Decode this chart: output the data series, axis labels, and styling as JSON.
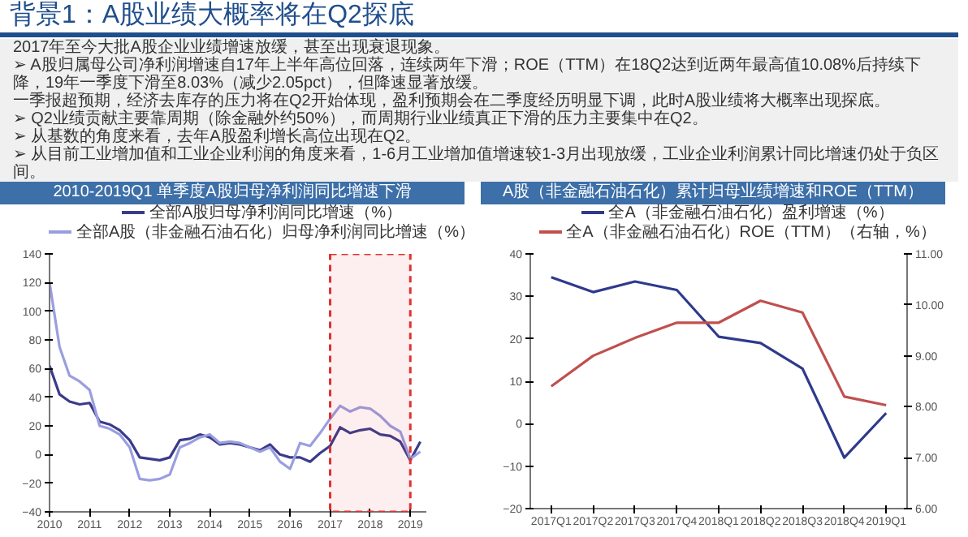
{
  "chart_data": [
    {
      "type": "other",
      "title": "背景1：A股业绩大概率将在Q2探底",
      "annotations": [
        "2017年至今大批A股企业业绩增速放缓，甚至出现衰退现象。",
        "➢ A股归属母公司净利润增速自17年上半年高位回落，连续两年下滑；ROE（TTM）在18Q2达到近两年最高值10.08%后持续下降，19年一季度下滑至8.03%（减少2.05pct），但降速显著放缓。",
        "一季报超预期，经济去库存的压力将在Q2开始体现，盈利预期会在二季度经历明显下调，此时A股业绩将大概率出现探底。",
        "➢ Q2业绩贡献主要靠周期（除金融外约50%），而周期行业业绩真正下滑的压力主要集中在Q2。",
        "➢ 从基数的角度来看，去年A股盈利增长高位出现在Q2。",
        "➢ 从目前工业增加值和工业企业利润的角度来看，1-6月工业增加值增速较1-3月出现放缓，工业企业利润累计同比增速仍处于负区间。"
      ]
    },
    {
      "type": "line",
      "title": "2010-2019Q1 单季度A股归母净利润同比增速下滑",
      "legend": "top",
      "xlim": [
        2010,
        2019.4
      ],
      "xticks": [
        2010,
        2011,
        2012,
        2013,
        2014,
        2015,
        2016,
        2017,
        2018,
        2019
      ],
      "ylim": [
        -40,
        140
      ],
      "yticks": [
        -40,
        -20,
        0,
        20,
        40,
        60,
        80,
        100,
        120,
        140
      ],
      "x": [
        2010,
        2010.25,
        2010.5,
        2010.75,
        2011,
        2011.25,
        2011.5,
        2011.75,
        2012,
        2012.25,
        2012.5,
        2012.75,
        2013,
        2013.25,
        2013.5,
        2013.75,
        2014,
        2014.25,
        2014.5,
        2014.75,
        2015,
        2015.25,
        2015.5,
        2015.75,
        2016,
        2016.25,
        2016.5,
        2016.75,
        2017,
        2017.25,
        2017.5,
        2017.75,
        2018,
        2018.25,
        2018.5,
        2018.75,
        2019,
        2019.25
      ],
      "bands": [
        {
          "axis": "x",
          "from": 2017,
          "to": 2019,
          "color": "#e03030"
        }
      ],
      "series": [
        {
          "name": "全部A股归母净利润同比增速（%）",
          "color": "#3b3b8a",
          "values": [
            62,
            42,
            37,
            35,
            36,
            23,
            21,
            17,
            10,
            -2,
            -3,
            -4,
            -2,
            10,
            11,
            14,
            12,
            7,
            8,
            7,
            5,
            3,
            7,
            0,
            -2,
            -2,
            -5,
            1,
            6,
            19,
            15,
            17,
            18,
            14,
            13,
            9,
            -4,
            9
          ]
        },
        {
          "name": "全部A股（非金融石油石化）归母净利润同比增速（%）",
          "color": "#9a9ee0",
          "values": [
            120,
            75,
            55,
            51,
            45,
            20,
            18,
            14,
            5,
            -17,
            -18,
            -17,
            -14,
            5,
            8,
            12,
            14,
            8,
            9,
            8,
            5,
            2,
            5,
            -5,
            -10,
            8,
            6,
            15,
            25,
            34,
            30,
            33,
            32,
            27,
            20,
            16,
            -3,
            2
          ]
        }
      ]
    },
    {
      "type": "line",
      "title": "A股（非金融石油石化）累计归母业绩增速和ROE（TTM）",
      "legend": "top",
      "categories": [
        "2017Q1",
        "2017Q2",
        "2017Q3",
        "2017Q4",
        "2018Q1",
        "2018Q2",
        "2018Q3",
        "2018Q4",
        "2019Q1"
      ],
      "ylim": [
        -20,
        40
      ],
      "yticks": [
        -20,
        -10,
        0,
        10,
        20,
        30,
        40
      ],
      "y2lim": [
        6,
        11
      ],
      "y2ticks": [
        {
          "value": 6,
          "label": "6.00"
        },
        {
          "value": 7,
          "label": "7.00"
        },
        {
          "value": 8,
          "label": "8.00"
        },
        {
          "value": 9,
          "label": "9.00"
        },
        {
          "value": 10,
          "label": "10.00"
        },
        {
          "value": 11,
          "label": "11.00"
        }
      ],
      "series": [
        {
          "name": "全A（非金融石油石化）盈利增速（%）",
          "color": "#2e3a8c",
          "values": [
            34.5,
            31,
            33.5,
            31.5,
            20.5,
            19,
            13,
            -8,
            2.5
          ]
        },
        {
          "name": "全A（非金融石油石化）ROE（TTM）（右轴，%）",
          "color": "#c0504d",
          "axis": "y2",
          "values": [
            8.4,
            9.0,
            9.35,
            9.65,
            9.65,
            10.08,
            9.85,
            8.2,
            8.03
          ]
        }
      ]
    }
  ]
}
